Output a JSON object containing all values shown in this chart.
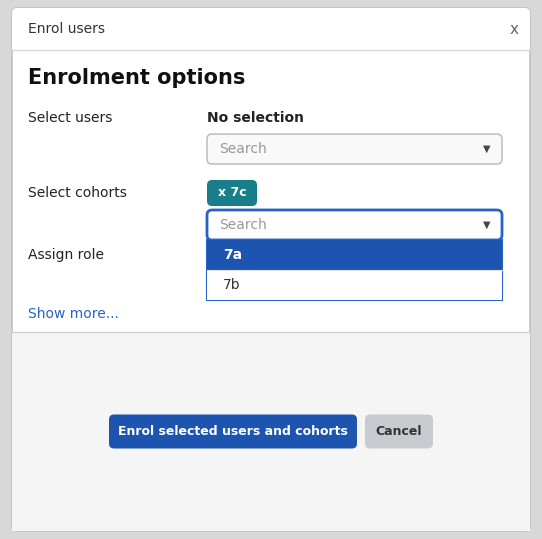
{
  "title_bar_text": "Enrol users",
  "close_x": "x",
  "heading": "Enrolment options",
  "label_select_users": "Select users",
  "no_selection_text": "No selection",
  "search_placeholder": "Search",
  "label_select_cohorts": "Select cohorts",
  "tag_text": "x 7c",
  "tag_bg_color": "#1a7d8a",
  "tag_text_color": "#ffffff",
  "label_assign_role": "Assign role",
  "show_more_text": "Show more...",
  "show_more_color": "#2563c7",
  "dropdown_items": [
    "7a",
    "7b"
  ],
  "dropdown_selected": 0,
  "dropdown_selected_bg": "#1d54b0",
  "dropdown_selected_text_color": "#ffffff",
  "dropdown_normal_bg": "#ffffff",
  "dropdown_normal_text_color": "#333333",
  "search_border_active_color": "#2563c7",
  "search_border_normal_color": "#b0b8c0",
  "btn_enrol_bg": "#1d54b0",
  "btn_enrol_text": "Enrol selected users and cohorts",
  "btn_enrol_text_color": "#ffffff",
  "btn_cancel_bg": "#c8ccd0",
  "btn_cancel_text": "Cancel",
  "btn_cancel_text_color": "#333333",
  "dialog_bg": "#ffffff",
  "dialog_border": "#c0c0c0",
  "header_border": "#d8d8d8",
  "footer_bg": "#f5f5f5",
  "footer_border": "#d0d0d0",
  "outer_bg": "#d8d8d8",
  "title_fontsize": 10,
  "heading_fontsize": 15,
  "label_fontsize": 10,
  "body_fontsize": 10
}
